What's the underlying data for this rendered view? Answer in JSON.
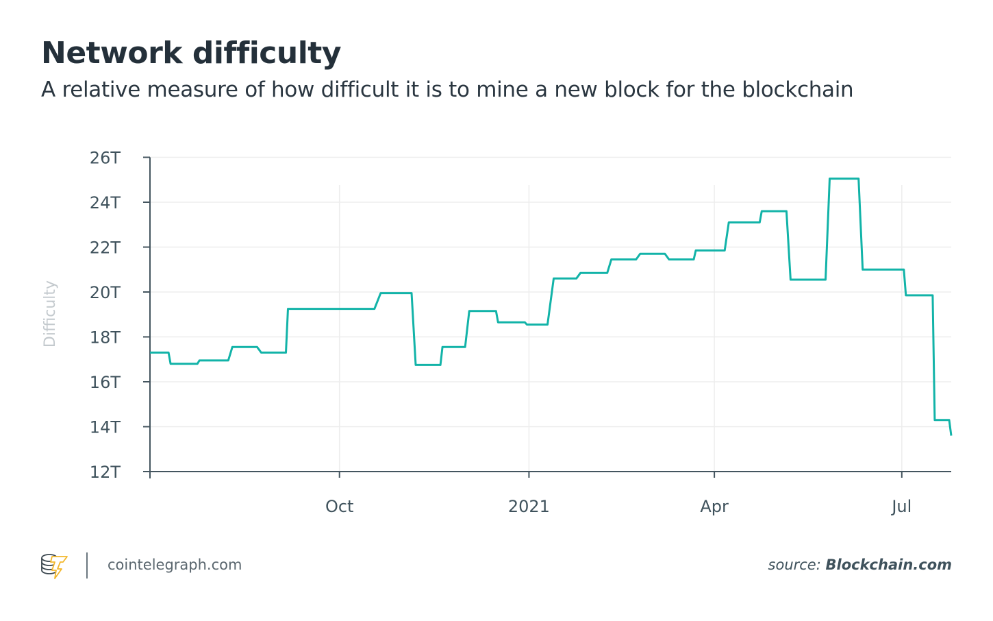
{
  "header": {
    "title": "Network difficulty",
    "subtitle": "A relative measure of how difficult it is to mine a new block for the blockchain"
  },
  "footer": {
    "site": "cointelegraph.com",
    "source_prefix": "source:",
    "source_name": "Blockchain.com",
    "logo_icon": "cointelegraph-logo-icon"
  },
  "colors": {
    "line": "#12b3a8",
    "axis": "#44555f",
    "grid": "#ededed",
    "text": "#24303a"
  },
  "chart_data": {
    "type": "line",
    "step": true,
    "title": "Network difficulty",
    "subtitle": "A relative measure of how difficult it is to mine a new block for the blockchain",
    "xlabel": "",
    "ylabel": "Difficulty",
    "ylim": [
      12,
      26
    ],
    "y_unit": "T",
    "yticks": [
      12,
      14,
      16,
      18,
      20,
      22,
      24,
      26
    ],
    "ytick_labels": [
      "12T",
      "14T",
      "16T",
      "18T",
      "20T",
      "22T",
      "24T",
      "26T"
    ],
    "xlim": [
      "2020-07-01",
      "2021-07-25"
    ],
    "xticks": [
      "2020-10-01",
      "2021-01-01",
      "2021-04-01",
      "2021-07-01"
    ],
    "xtick_labels": [
      "Oct",
      "2021",
      "Apr",
      "Jul"
    ],
    "grid": true,
    "series": [
      {
        "name": "Difficulty",
        "x": [
          "2020-07-01",
          "2020-07-10",
          "2020-07-11",
          "2020-07-24",
          "2020-07-25",
          "2020-08-08",
          "2020-08-10",
          "2020-08-22",
          "2020-08-24",
          "2020-09-05",
          "2020-09-06",
          "2020-10-18",
          "2020-10-21",
          "2020-11-05",
          "2020-11-07",
          "2020-11-19",
          "2020-11-20",
          "2020-12-01",
          "2020-12-03",
          "2020-12-16",
          "2020-12-17",
          "2020-12-30",
          "2020-12-31",
          "2021-01-10",
          "2021-01-13",
          "2021-01-24",
          "2021-01-26",
          "2021-02-08",
          "2021-02-10",
          "2021-02-22",
          "2021-02-24",
          "2021-03-08",
          "2021-03-10",
          "2021-03-22",
          "2021-03-23",
          "2021-04-06",
          "2021-04-08",
          "2021-04-23",
          "2021-04-24",
          "2021-05-06",
          "2021-05-08",
          "2021-05-25",
          "2021-05-27",
          "2021-06-10",
          "2021-06-12",
          "2021-07-02",
          "2021-07-03",
          "2021-07-16",
          "2021-07-17"
        ],
        "values": [
          17.3,
          17.3,
          16.8,
          16.8,
          16.95,
          16.95,
          17.55,
          17.55,
          17.3,
          17.3,
          19.25,
          19.25,
          19.95,
          19.95,
          16.75,
          16.75,
          17.55,
          17.55,
          19.15,
          19.15,
          18.65,
          18.65,
          18.55,
          18.55,
          20.6,
          20.6,
          20.85,
          20.85,
          21.45,
          21.45,
          21.7,
          21.7,
          21.45,
          21.45,
          21.85,
          21.85,
          23.1,
          23.1,
          23.6,
          23.6,
          20.55,
          20.55,
          25.05,
          25.05,
          21.0,
          21.0,
          19.85,
          19.85,
          14.3
        ]
      }
    ],
    "final_point": {
      "x": "2021-07-25",
      "value": 13.6
    }
  }
}
